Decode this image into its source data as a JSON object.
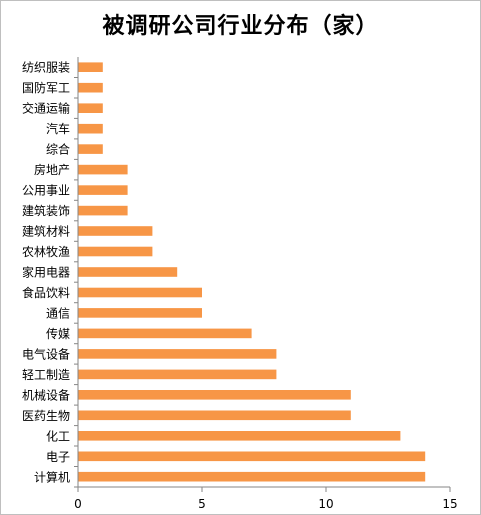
{
  "chart_data": {
    "type": "bar",
    "orientation": "horizontal",
    "title": "被调研公司行业分布（家）",
    "categories": [
      "计算机",
      "电子",
      "化工",
      "医药生物",
      "机械设备",
      "轻工制造",
      "电气设备",
      "传媒",
      "通信",
      "食品饮料",
      "家用电器",
      "农林牧渔",
      "建筑材料",
      "建筑装饰",
      "公用事业",
      "房地产",
      "综合",
      "汽车",
      "交通运输",
      "国防军工",
      "纺织服装"
    ],
    "values": [
      14,
      14,
      13,
      11,
      11,
      8,
      8,
      7,
      5,
      5,
      4,
      3,
      3,
      2,
      2,
      2,
      1,
      1,
      1,
      1,
      1
    ],
    "xlim": [
      0,
      15
    ],
    "xticks": [
      0,
      5,
      10,
      15
    ],
    "grid": false,
    "legend": "none",
    "bar_color": "#f79646",
    "axis_color": "#868686"
  }
}
